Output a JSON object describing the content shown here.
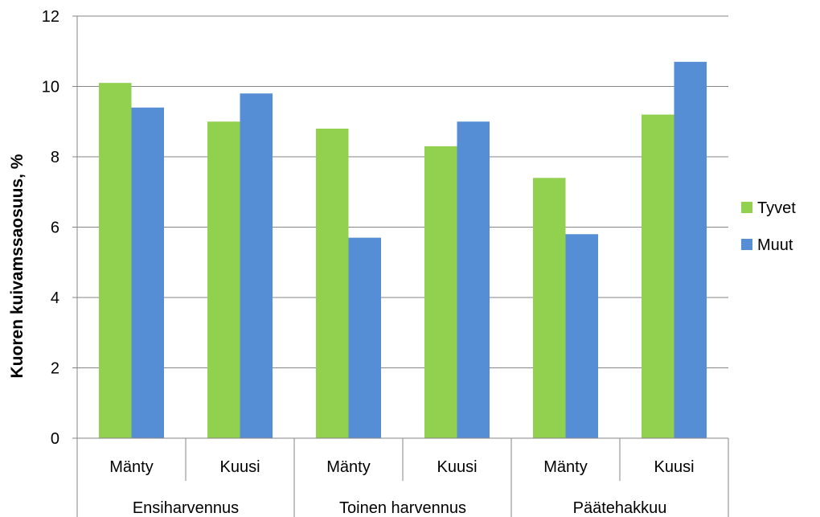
{
  "chart_data": {
    "type": "bar",
    "categories": [
      "Mänty",
      "Kuusi",
      "Mänty",
      "Kuusi",
      "Mänty",
      "Kuusi"
    ],
    "groups": [
      {
        "label": "Ensiharvennus",
        "span": [
          0,
          1
        ]
      },
      {
        "label": "Toinen harvennus",
        "span": [
          2,
          3
        ]
      },
      {
        "label": "Päätehakkuu",
        "span": [
          4,
          5
        ]
      }
    ],
    "series": [
      {
        "name": "Tyvet",
        "color": "#92d050",
        "values": [
          10.1,
          9.0,
          8.8,
          8.3,
          7.4,
          9.2
        ]
      },
      {
        "name": "Muut",
        "color": "#558ed5",
        "values": [
          9.4,
          9.8,
          5.7,
          9.0,
          5.8,
          10.7
        ]
      }
    ],
    "title": "",
    "xlabel": "",
    "ylabel": "Kuoren kuivamssaosuus, %",
    "ylim": [
      0,
      12
    ],
    "yticks": [
      0,
      2,
      4,
      6,
      8,
      10,
      12
    ],
    "grid": true,
    "legend_position": "right"
  }
}
